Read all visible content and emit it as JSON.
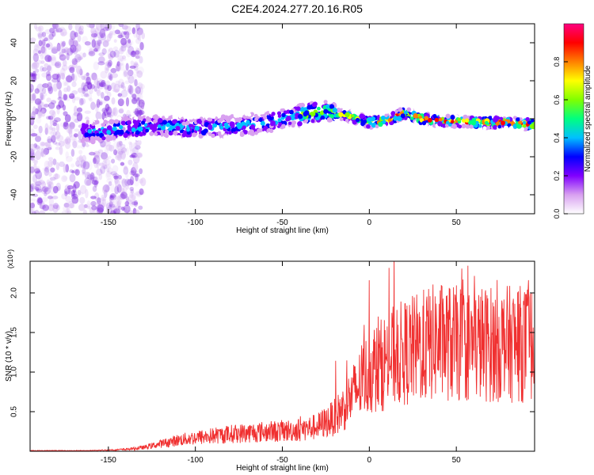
{
  "title": "C2E4.2024.277.20.16.R05",
  "chart_data": [
    {
      "type": "heatmap",
      "xlabel": "Height of straight line (km)",
      "ylabel": "Frequency (Hz)",
      "xlim": [
        -195,
        95
      ],
      "ylim": [
        -50,
        50
      ],
      "xticks": [
        -150,
        -100,
        -50,
        0,
        50
      ],
      "xtick_labels": [
        "-150",
        "-100",
        "-50",
        "0",
        "50"
      ],
      "yticks": [
        -40,
        -20,
        0,
        20,
        40
      ],
      "ytick_labels": [
        "-40",
        "-20",
        "0",
        "20",
        "40"
      ],
      "colorbar": {
        "label": "Normalized spectral amplitude",
        "range": [
          0,
          1
        ],
        "ticks": [
          0.0,
          0.2,
          0.4,
          0.6,
          0.8
        ],
        "tick_labels": [
          "0.0",
          "0.2",
          "0.4",
          "0.6",
          "0.8"
        ],
        "colors": [
          "#ffffff",
          "#d8a0f0",
          "#8000ff",
          "#0000ff",
          "#00c0ff",
          "#00ff80",
          "#80ff00",
          "#ffff00",
          "#ff8000",
          "#ff0000",
          "#ff0080"
        ]
      },
      "ridge": {
        "x": [
          -160,
          -140,
          -120,
          -100,
          -80,
          -60,
          -40,
          -25,
          -10,
          0,
          10,
          20,
          30,
          40,
          60,
          80,
          95
        ],
        "y": [
          -7,
          -5,
          -4,
          -5,
          -4,
          -2,
          2,
          4,
          1,
          -2,
          -1,
          3,
          0,
          -1,
          -2,
          -2,
          -3
        ]
      },
      "grid": false
    },
    {
      "type": "line",
      "xlabel": "Height of straight line (km)",
      "ylabel": "SNR (10 * v/v)",
      "y_multiplier": "(x10⁴)",
      "xlim": [
        -195,
        95
      ],
      "ylim": [
        0,
        2.4
      ],
      "xticks": [
        -150,
        -100,
        -50,
        0,
        50
      ],
      "xtick_labels": [
        "-150",
        "-100",
        "-50",
        "0",
        "50"
      ],
      "yticks": [
        0.5,
        1.0,
        1.5,
        2.0
      ],
      "ytick_labels": [
        "0.5",
        "1.0",
        "1.5",
        "2.0"
      ],
      "color": "#f03030",
      "envelope": {
        "x": [
          -195,
          -160,
          -140,
          -130,
          -120,
          -110,
          -100,
          -90,
          -80,
          -70,
          -60,
          -50,
          -40,
          -30,
          -20,
          -15,
          -10,
          -5,
          0,
          5,
          10,
          15,
          20,
          25,
          30,
          40,
          50,
          60,
          70,
          80,
          95
        ],
        "y": [
          0.01,
          0.01,
          0.03,
          0.06,
          0.12,
          0.18,
          0.22,
          0.25,
          0.28,
          0.3,
          0.32,
          0.33,
          0.35,
          0.4,
          0.55,
          0.7,
          0.9,
          1.1,
          1.3,
          1.35,
          1.5,
          1.55,
          1.6,
          1.65,
          1.7,
          1.8,
          1.75,
          1.75,
          1.75,
          1.75,
          1.75
        ]
      },
      "grid": false
    }
  ]
}
